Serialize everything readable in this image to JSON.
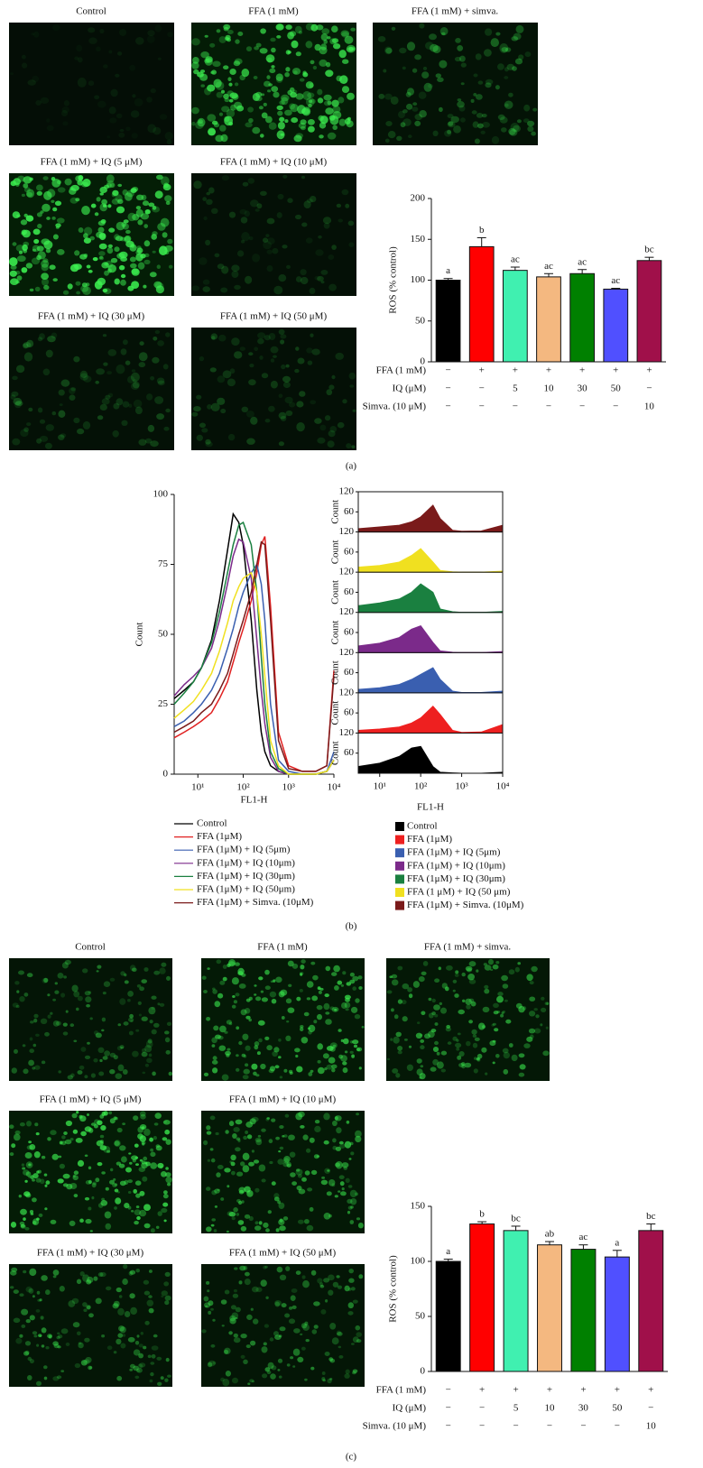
{
  "panel_a": {
    "label": "(a)",
    "images": [
      "Control",
      "FFA (1 mM)",
      "FFA (1 mM) + simva.",
      "FFA (1 mM) + IQ (5 μM)",
      "FFA (1 mM) + IQ (10 μM)",
      "FFA (1 mM) + IQ (30 μM)",
      "FFA (1 mM) + IQ (50 μM)"
    ]
  },
  "panel_b": {
    "label": "(b)"
  },
  "panel_c": {
    "label": "(c)",
    "images": [
      "Control",
      "FFA (1 mM)",
      "FFA (1 mM) + simva.",
      "FFA (1 mM) + IQ (5 μM)",
      "FFA (1 mM) + IQ (10 μM)",
      "FFA (1 mM) + IQ (30 μM)",
      "FFA (1 mM) + IQ (50 μM)"
    ]
  },
  "chart_data": [
    {
      "type": "bar",
      "ylabel": "ROS (% control)",
      "values": [
        100,
        141,
        112,
        104,
        108,
        89,
        124
      ],
      "errors": [
        2,
        11,
        4,
        4,
        5,
        1,
        4
      ],
      "significance": [
        "a",
        "b",
        "ac",
        "ac",
        "ac",
        "ac",
        "bc"
      ],
      "colors": [
        "#000000",
        "#ff0000",
        "#40f0b0",
        "#f4b880",
        "#008000",
        "#5050ff",
        "#a0104a"
      ],
      "ylim": [
        0,
        200
      ],
      "yticks": [
        0,
        50,
        100,
        150,
        200
      ],
      "treatment_table": {
        "rows": [
          {
            "label": "FFA (1 mM)",
            "cells": [
              "−",
              "+",
              "+",
              "+",
              "+",
              "+",
              "+"
            ]
          },
          {
            "label": "IQ (μM)",
            "cells": [
              "−",
              "−",
              "5",
              "10",
              "30",
              "50",
              "−"
            ]
          },
          {
            "label": "Simva. (10 μM)",
            "cells": [
              "−",
              "−",
              "−",
              "−",
              "−",
              "−",
              "10"
            ]
          }
        ]
      }
    },
    {
      "type": "line",
      "xlabel": "FL1-H",
      "ylabel": "Count",
      "xscale": "log",
      "x": [
        3,
        5,
        8,
        12,
        20,
        30,
        45,
        60,
        80,
        100,
        150,
        200,
        250,
        300,
        400,
        600,
        1000,
        2000,
        4000,
        7000,
        10000
      ],
      "xlim": [
        3,
        10000
      ],
      "xticks": [
        {
          "value": 10,
          "label": "10¹"
        },
        {
          "value": 100,
          "label": "10²"
        },
        {
          "value": 1000,
          "label": "10³"
        },
        {
          "value": 10000,
          "label": "10⁴"
        }
      ],
      "ylim": [
        0,
        100
      ],
      "yticks": [
        0,
        25,
        50,
        75,
        100
      ],
      "series": [
        {
          "name": "Control",
          "color": "#000000",
          "values": [
            27,
            30,
            33,
            38,
            48,
            62,
            80,
            93,
            90,
            82,
            55,
            30,
            15,
            8,
            3,
            1,
            0,
            0,
            0,
            1,
            5
          ]
        },
        {
          "name": "FFA (1μM)",
          "color": "#e02020",
          "values": [
            13,
            15,
            17,
            19,
            22,
            27,
            33,
            40,
            47,
            52,
            62,
            72,
            82,
            85,
            60,
            15,
            3,
            1,
            1,
            3,
            37
          ]
        },
        {
          "name": "FFA (1μM) + IQ (5μm)",
          "color": "#3a5fb0",
          "values": [
            17,
            19,
            22,
            25,
            30,
            36,
            45,
            52,
            60,
            65,
            72,
            75,
            68,
            55,
            25,
            5,
            1,
            0,
            0,
            1,
            8
          ]
        },
        {
          "name": "FFA (1μM) + IQ (10μm)",
          "color": "#7b2a8a",
          "values": [
            28,
            32,
            35,
            38,
            45,
            55,
            68,
            78,
            84,
            83,
            70,
            48,
            30,
            18,
            6,
            1,
            0,
            0,
            0,
            1,
            5
          ]
        },
        {
          "name": "FFA (1μM) + IQ (30μm)",
          "color": "#1a8040",
          "values": [
            25,
            29,
            33,
            38,
            47,
            58,
            72,
            82,
            89,
            90,
            82,
            65,
            42,
            25,
            8,
            2,
            0,
            0,
            0,
            1,
            5
          ]
        },
        {
          "name": "FFA (1μM) + IQ (50μm)",
          "color": "#f0e020",
          "values": [
            20,
            23,
            26,
            30,
            36,
            44,
            54,
            62,
            67,
            70,
            72,
            65,
            50,
            35,
            12,
            3,
            0,
            0,
            0,
            1,
            5
          ]
        },
        {
          "name": "FFA (1μM) + Simva. (10μM)",
          "color": "#7a1a1a",
          "values": [
            15,
            17,
            19,
            22,
            25,
            30,
            36,
            43,
            50,
            55,
            65,
            75,
            83,
            82,
            55,
            12,
            2,
            1,
            1,
            3,
            35
          ]
        }
      ]
    },
    {
      "type": "area",
      "panels": true,
      "xlabel": "FL1-H",
      "ylabel": "Count",
      "xscale": "log",
      "x": [
        3,
        10,
        30,
        60,
        100,
        200,
        300,
        600,
        1000,
        3000,
        10000
      ],
      "xlim": [
        3,
        10000
      ],
      "xticks": [
        {
          "value": 10,
          "label": "10¹"
        },
        {
          "value": 100,
          "label": "10²"
        },
        {
          "value": 1000,
          "label": "10³"
        },
        {
          "value": 10000,
          "label": "10⁴"
        }
      ],
      "ylim": [
        0,
        120
      ],
      "yticks": [
        60,
        120
      ],
      "series": [
        {
          "name": "Control",
          "color": "#000000",
          "values": [
            20,
            30,
            50,
            75,
            80,
            20,
            3,
            1,
            0,
            0,
            3
          ]
        },
        {
          "name": "FFA (1μM)",
          "color": "#ee2020",
          "values": [
            8,
            12,
            18,
            30,
            45,
            80,
            55,
            8,
            2,
            3,
            25
          ]
        },
        {
          "name": "FFA (1μM) + IQ (5μm)",
          "color": "#3a5fb0",
          "values": [
            10,
            15,
            25,
            40,
            55,
            75,
            40,
            5,
            1,
            1,
            5
          ]
        },
        {
          "name": "FFA (1μM) + IQ (10μm)",
          "color": "#7b2a8a",
          "values": [
            20,
            28,
            45,
            70,
            80,
            30,
            5,
            1,
            0,
            0,
            3
          ]
        },
        {
          "name": "FFA (1μM) + IQ (30μm)",
          "color": "#1a8040",
          "values": [
            20,
            28,
            40,
            60,
            85,
            60,
            10,
            2,
            0,
            0,
            3
          ]
        },
        {
          "name": "FFA (1 μM) + IQ (50 μm)",
          "color": "#f0e020",
          "values": [
            15,
            20,
            30,
            50,
            70,
            30,
            5,
            1,
            0,
            0,
            3
          ]
        },
        {
          "name": "FFA (1μM) + Simva. (10μM)",
          "color": "#7a1a1a",
          "values": [
            10,
            15,
            20,
            30,
            45,
            80,
            40,
            5,
            2,
            3,
            20
          ]
        }
      ]
    },
    {
      "type": "bar",
      "ylabel": "ROS (% control)",
      "values": [
        100,
        134,
        128,
        115,
        111,
        104,
        128
      ],
      "errors": [
        2,
        2,
        4,
        3,
        4,
        6,
        6
      ],
      "significance": [
        "a",
        "b",
        "bc",
        "ab",
        "ac",
        "a",
        "bc"
      ],
      "colors": [
        "#000000",
        "#ff0000",
        "#40f0b0",
        "#f4b880",
        "#008000",
        "#5050ff",
        "#a0104a"
      ],
      "ylim": [
        0,
        150
      ],
      "yticks": [
        0,
        50,
        100,
        150
      ],
      "treatment_table": {
        "rows": [
          {
            "label": "FFA (1 mM)",
            "cells": [
              "−",
              "+",
              "+",
              "+",
              "+",
              "+",
              "+"
            ]
          },
          {
            "label": "IQ (μM)",
            "cells": [
              "−",
              "−",
              "5",
              "10",
              "30",
              "50",
              "−"
            ]
          },
          {
            "label": "Simva. (10 μM)",
            "cells": [
              "−",
              "−",
              "−",
              "−",
              "−",
              "−",
              "10"
            ]
          }
        ]
      }
    }
  ]
}
